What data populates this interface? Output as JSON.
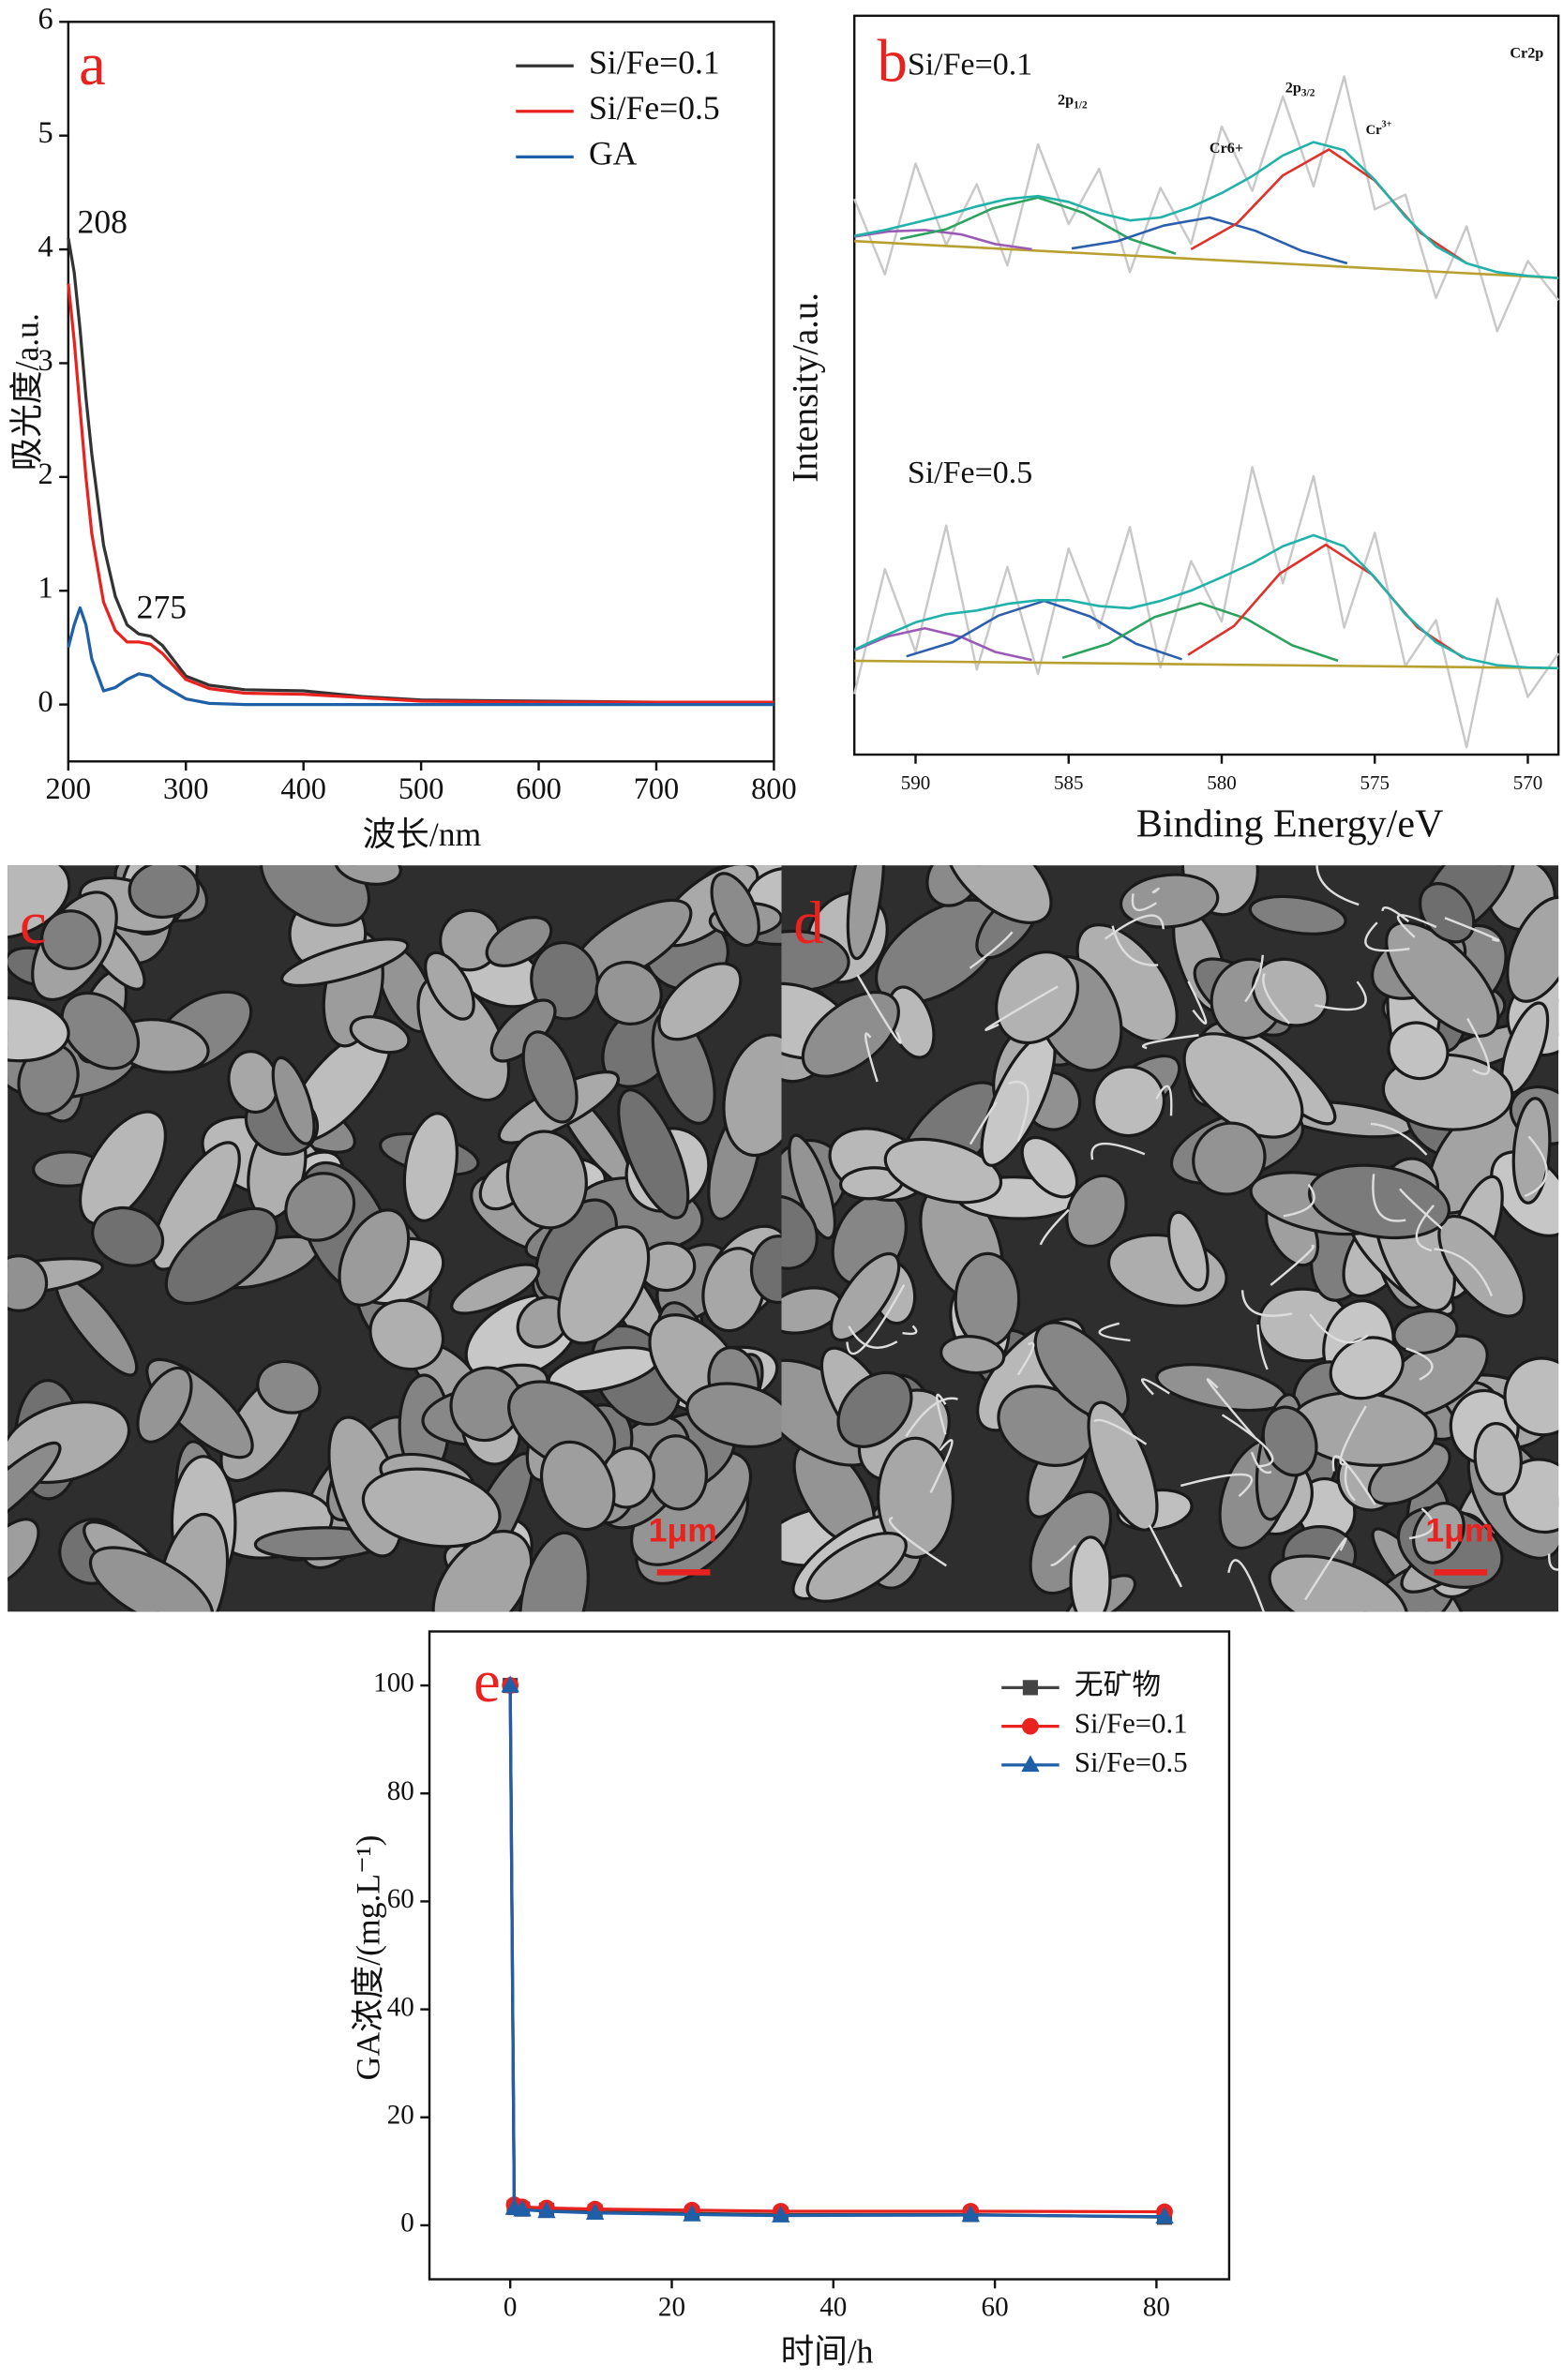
{
  "chart_data": [
    {
      "type": "line",
      "panel_label": "a",
      "xlabel": "波长/nm",
      "ylabel": "吸光度/a.u.",
      "xlim": [
        200,
        800
      ],
      "ylim": [
        -0.5,
        6
      ],
      "xticks": [
        200,
        300,
        400,
        500,
        600,
        700,
        800
      ],
      "yticks": [
        0,
        1,
        2,
        3,
        4,
        5,
        6
      ],
      "legend": "upper right",
      "annotations": [
        "208",
        "275"
      ],
      "x": [
        200,
        205,
        210,
        215,
        220,
        230,
        240,
        250,
        260,
        270,
        280,
        300,
        320,
        350,
        400,
        450,
        500,
        600,
        700,
        800
      ],
      "series": [
        {
          "name": "Si/Fe=0.1",
          "color": "#333333",
          "values": [
            4.1,
            3.8,
            3.3,
            2.7,
            2.2,
            1.4,
            0.95,
            0.7,
            0.62,
            0.6,
            0.52,
            0.25,
            0.17,
            0.13,
            0.12,
            0.07,
            0.04,
            0.03,
            0.02,
            0.02
          ]
        },
        {
          "name": "Si/Fe=0.5",
          "color": "#e8231f",
          "values": [
            3.7,
            3.2,
            2.6,
            2.0,
            1.5,
            0.9,
            0.65,
            0.55,
            0.55,
            0.53,
            0.45,
            0.22,
            0.14,
            0.1,
            0.09,
            0.06,
            0.03,
            0.02,
            0.02,
            0.02
          ]
        },
        {
          "name": "GA",
          "color": "#1f5fa8",
          "values": [
            0.5,
            0.7,
            0.85,
            0.7,
            0.4,
            0.12,
            0.15,
            0.22,
            0.27,
            0.25,
            0.17,
            0.05,
            0.01,
            0,
            0,
            0,
            0,
            0,
            0,
            0
          ]
        }
      ]
    },
    {
      "type": "line",
      "panel_label": "b",
      "xlabel": "Binding Energy/eV",
      "ylabel": "Intensity/a.u.",
      "xlim": [
        592,
        569
      ],
      "ylim": [
        0,
        100
      ],
      "xticks": [
        590,
        585,
        580,
        575,
        570
      ],
      "annotations": [
        {
          "text": "Cr2p"
        },
        {
          "text": "2p",
          "sub": "1/2"
        },
        {
          "text": "Cr6+"
        },
        {
          "text": "2p",
          "sub": "3/2"
        },
        {
          "text": "Cr",
          "sup": "3+"
        }
      ],
      "spectra": [
        {
          "label": "Si/Fe=0.1",
          "series": [
            {
              "color": "#c8c8c8",
              "x": [
                592,
                591,
                590,
                589,
                588,
                587,
                586,
                585,
                584,
                583,
                582,
                581,
                580,
                579,
                578,
                577,
                576,
                575,
                574,
                573,
                572,
                571,
                570,
                569
              ],
              "values": [
                75.2,
                65.0,
                80.0,
                69.0,
                77.2,
                66.2,
                82.6,
                71.8,
                79.3,
                65.3,
                76.7,
                69.1,
                85.0,
                76.3,
                89.1,
                76.9,
                91.8,
                73.8,
                75.8,
                61.8,
                71.5,
                57.3,
                66.8,
                61.5
              ]
            },
            {
              "color": "#b8a030",
              "x": [
                592,
                569
              ],
              "values": [
                69.5,
                64.5
              ]
            },
            {
              "color": "#9b59b6",
              "x": [
                592,
                590.9,
                589.7,
                588.5,
                587.4,
                586.2
              ],
              "values": [
                70.1,
                70.8,
                71.0,
                70.4,
                69.1,
                68.4
              ]
            },
            {
              "color": "#2ca25f",
              "x": [
                590.5,
                589,
                587.5,
                586,
                584.5,
                583,
                581.5
              ],
              "values": [
                69.8,
                71.1,
                73.9,
                75.4,
                73.3,
                69.8,
                67.8
              ]
            },
            {
              "color": "#2b5fad",
              "x": [
                584.9,
                583.4,
                581.9,
                580.4,
                578.9,
                577.4,
                575.9
              ],
              "values": [
                68.5,
                69.5,
                71.6,
                72.7,
                70.9,
                68.2,
                66.5
              ]
            },
            {
              "color": "#e0302a",
              "x": [
                581,
                579.5,
                578,
                576.5,
                575,
                573.5,
                572
              ],
              "values": [
                68.4,
                71.9,
                78.4,
                81.9,
                77.7,
                70.6,
                66.5
              ]
            },
            {
              "color": "#20b2aa",
              "x": [
                592,
                591,
                590,
                589,
                588,
                587,
                586,
                585,
                584,
                583,
                582,
                581,
                580,
                579,
                578,
                577,
                576,
                575,
                574,
                573,
                572,
                571,
                570,
                569
              ],
              "values": [
                70.2,
                71.0,
                72.0,
                73.0,
                74.2,
                75.2,
                75.6,
                74.8,
                73.3,
                72.3,
                72.7,
                74.1,
                76.0,
                78.3,
                81.1,
                82.9,
                81.8,
                77.8,
                72.8,
                68.8,
                66.5,
                65.3,
                64.8,
                64.5
              ]
            }
          ]
        },
        {
          "label": "Si/Fe=0.5",
          "series": [
            {
              "color": "#c8c8c8",
              "x": [
                592,
                591,
                590,
                589,
                588,
                587,
                586,
                585,
                584,
                583,
                582,
                581,
                580,
                579,
                578,
                577,
                576,
                575,
                574,
                573,
                572,
                571,
                570,
                569
              ],
              "values": [
                8.2,
                25.1,
                13.9,
                31.0,
                11.5,
                25.4,
                10.9,
                27.9,
                17.1,
                30.8,
                11.8,
                26.2,
                18.0,
                38.9,
                23.2,
                37.7,
                17.2,
                30.0,
                12.0,
                18.2,
                1.0,
                21.1,
                7.8,
                13.7
              ]
            },
            {
              "color": "#b8a030",
              "x": [
                592,
                569
              ],
              "values": [
                12.7,
                11.7
              ]
            },
            {
              "color": "#9b59b6",
              "x": [
                592,
                590.9,
                589.7,
                588.5,
                587.4,
                586.2
              ],
              "values": [
                14.1,
                16.0,
                17.1,
                15.9,
                13.9,
                12.8
              ]
            },
            {
              "color": "#2b5fad",
              "x": [
                590.3,
                588.8,
                587.3,
                585.8,
                584.3,
                582.8,
                581.3
              ],
              "values": [
                13.3,
                15.2,
                18.8,
                20.8,
                18.7,
                15.0,
                12.9
              ]
            },
            {
              "color": "#2ca25f",
              "x": [
                585.2,
                583.7,
                582.2,
                580.7,
                579.2,
                577.7,
                576.2
              ],
              "values": [
                13.1,
                15.0,
                18.6,
                20.5,
                18.4,
                14.8,
                12.7
              ]
            },
            {
              "color": "#e0302a",
              "x": [
                581.1,
                579.6,
                578.1,
                576.6,
                575.1,
                573.6,
                572.1
              ],
              "values": [
                13.5,
                17.4,
                24.5,
                28.4,
                24.4,
                17.2,
                13.1
              ]
            },
            {
              "color": "#20b2aa",
              "x": [
                592,
                591,
                590,
                589,
                588,
                587,
                586,
                585,
                584,
                583,
                582,
                581,
                580,
                579,
                578,
                577,
                576,
                575,
                574,
                573,
                572,
                571,
                570,
                569
              ],
              "values": [
                14.2,
                16.1,
                17.9,
                19.0,
                19.5,
                20.4,
                20.9,
                20.9,
                20.1,
                19.8,
                20.8,
                22.2,
                24.0,
                25.9,
                28.2,
                29.7,
                28.2,
                24.0,
                19.0,
                15.2,
                13.0,
                12.1,
                11.8,
                11.7
              ]
            }
          ]
        }
      ]
    },
    {
      "type": "line",
      "panel_label": "e",
      "xlabel": "时间/h",
      "ylabel": "GA浓度/(mg.L⁻¹)",
      "xlim": [
        -10,
        89
      ],
      "ylim": [
        -10,
        110
      ],
      "xticks": [
        0,
        20,
        40,
        60,
        80
      ],
      "yticks": [
        0,
        20,
        40,
        60,
        80,
        100
      ],
      "legend": "upper right",
      "x": [
        0,
        0.5,
        1.5,
        4.5,
        10.5,
        22.5,
        33.5,
        57,
        81
      ],
      "series": [
        {
          "name": "无矿物",
          "color": "#444444",
          "marker": "square",
          "values": [
            100,
            3.3,
            3.0,
            2.8,
            2.5,
            2.2,
            2.0,
            2.0,
            1.5
          ]
        },
        {
          "name": "Si/Fe=0.1",
          "color": "#e8231f",
          "marker": "circle",
          "values": [
            100,
            3.8,
            3.4,
            3.2,
            3.0,
            2.8,
            2.6,
            2.6,
            2.5
          ]
        },
        {
          "name": "Si/Fe=0.5",
          "color": "#1f5fa8",
          "marker": "triangle",
          "values": [
            100,
            3.2,
            2.9,
            2.6,
            2.3,
            2.0,
            1.8,
            1.9,
            1.6
          ]
        }
      ]
    }
  ],
  "images": [
    {
      "label": "c",
      "scale_bar": "1μm"
    },
    {
      "label": "d",
      "scale_bar": "1μm"
    }
  ]
}
